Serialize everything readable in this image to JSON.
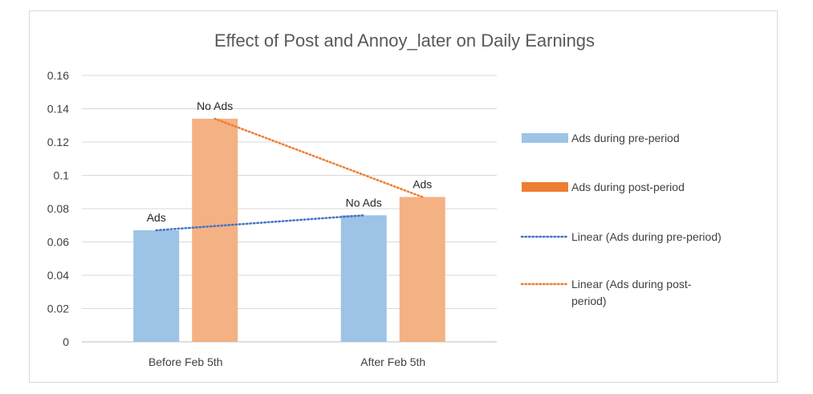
{
  "chart_data": {
    "type": "bar",
    "title": "Effect of Post and Annoy_later on Daily Earnings",
    "categories": [
      "Before Feb 5th",
      "After Feb 5th"
    ],
    "ylim": [
      0,
      0.16
    ],
    "yticks": [
      0,
      0.02,
      0.04,
      0.06,
      0.08,
      0.1,
      0.12,
      0.14,
      0.16
    ],
    "ytick_labels": [
      "0",
      "0.02",
      "0.04",
      "0.06",
      "0.08",
      "0.1",
      "0.12",
      "0.14",
      "0.16"
    ],
    "grid": true,
    "legend_position": "right",
    "series": [
      {
        "name": "Ads during pre-period",
        "values": [
          0.067,
          0.076
        ],
        "color": "#9DC3E6",
        "legend_color": "#9DC3E6",
        "data_labels": [
          "Ads",
          "No Ads"
        ]
      },
      {
        "name": "Ads during post-period",
        "values": [
          0.134,
          0.087
        ],
        "color": "#F4B183",
        "legend_color": "#ED7D31",
        "data_labels": [
          "No Ads",
          "Ads"
        ]
      }
    ],
    "trendlines": [
      {
        "name": "Linear (Ads during pre-period)",
        "series": 0,
        "color": "#4472C4",
        "style": "dotted"
      },
      {
        "name": "Linear (Ads during post-\nperiod)",
        "series": 1,
        "color": "#ED7D31",
        "style": "dotted"
      }
    ]
  }
}
